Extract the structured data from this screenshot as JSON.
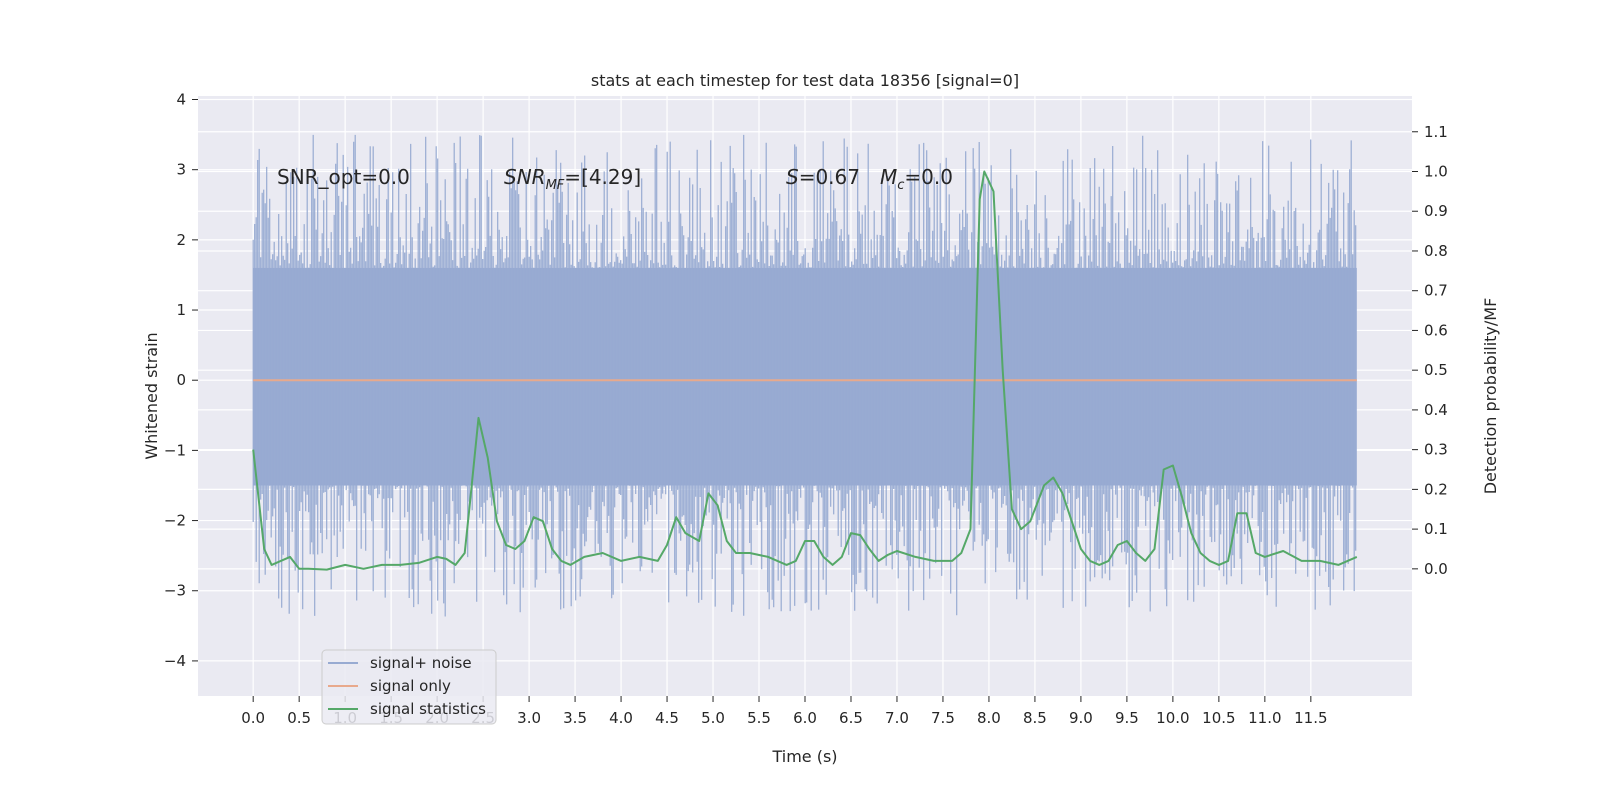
{
  "chart_data": {
    "type": "line",
    "title": "stats at each timestep for test data 18356 [signal=0]",
    "xlabel": "Time (s)",
    "ylabel": "Whitened strain",
    "y2label": "Detection probability/MF",
    "xlim": [
      -0.6,
      12.6
    ],
    "ylim": [
      -4.5,
      4.05
    ],
    "y2lim": [
      -0.32,
      1.19
    ],
    "xticks": [
      0.0,
      0.5,
      1.0,
      1.5,
      2.0,
      2.5,
      3.0,
      3.5,
      4.0,
      4.5,
      5.0,
      5.5,
      6.0,
      6.5,
      7.0,
      7.5,
      8.0,
      8.5,
      9.0,
      9.5,
      10.0,
      10.5,
      11.0,
      11.5
    ],
    "xtick_labels": [
      "0.0",
      "0.5",
      "1.0",
      "1.5",
      "2.0",
      "2.5",
      "3.0",
      "3.5",
      "4.0",
      "4.5",
      "5.0",
      "5.5",
      "6.0",
      "6.5",
      "7.0",
      "7.5",
      "8.0",
      "8.5",
      "9.0",
      "9.5",
      "10.0",
      "10.5",
      "11.0",
      "11.5"
    ],
    "yticks": [
      -4,
      -3,
      -2,
      -1,
      0,
      1,
      2,
      3,
      4
    ],
    "ytick_labels": [
      "−4",
      "−3",
      "−2",
      "−1",
      "0",
      "1",
      "2",
      "3",
      "4"
    ],
    "y2ticks": [
      0.0,
      0.1,
      0.2,
      0.3,
      0.4,
      0.5,
      0.6,
      0.7,
      0.8,
      0.9,
      1.0,
      1.1
    ],
    "y2tick_labels": [
      "0.0",
      "0.1",
      "0.2",
      "0.3",
      "0.4",
      "0.5",
      "0.6",
      "0.7",
      "0.8",
      "0.9",
      "1.0",
      "1.1"
    ],
    "grid": true,
    "legend_position": "lower-left",
    "series": [
      {
        "name": "signal+ noise",
        "color": "#98abd2",
        "kind": "noise-band",
        "t_start": 0.0,
        "t_end": 12.0,
        "band": [
          -1.5,
          1.6
        ]
      },
      {
        "name": "signal only",
        "color": "#e8a98c",
        "kind": "flat",
        "x": [
          0.0,
          12.0
        ],
        "y": [
          0.0,
          0.0
        ]
      },
      {
        "name": "signal statistics",
        "color": "#55a868",
        "kind": "line",
        "axis": "right",
        "x": [
          0.0,
          0.12,
          0.2,
          0.3,
          0.4,
          0.5,
          0.6,
          0.8,
          1.0,
          1.2,
          1.4,
          1.6,
          1.8,
          2.0,
          2.1,
          2.2,
          2.3,
          2.35,
          2.45,
          2.55,
          2.65,
          2.75,
          2.85,
          2.95,
          3.05,
          3.15,
          3.25,
          3.35,
          3.45,
          3.6,
          3.8,
          4.0,
          4.2,
          4.4,
          4.5,
          4.6,
          4.7,
          4.85,
          4.95,
          5.05,
          5.15,
          5.25,
          5.4,
          5.6,
          5.8,
          5.9,
          6.0,
          6.1,
          6.2,
          6.3,
          6.4,
          6.5,
          6.6,
          6.7,
          6.8,
          6.9,
          7.0,
          7.2,
          7.4,
          7.5,
          7.6,
          7.7,
          7.8,
          7.9,
          7.95,
          8.05,
          8.15,
          8.25,
          8.35,
          8.45,
          8.6,
          8.7,
          8.8,
          8.9,
          9.0,
          9.1,
          9.2,
          9.3,
          9.4,
          9.5,
          9.6,
          9.7,
          9.8,
          9.9,
          10.0,
          10.1,
          10.2,
          10.3,
          10.4,
          10.5,
          10.6,
          10.7,
          10.8,
          10.9,
          11.0,
          11.2,
          11.4,
          11.6,
          11.8,
          12.0
        ],
        "y": [
          0.3,
          0.05,
          0.01,
          0.02,
          0.03,
          0.0,
          0.0,
          -0.002,
          0.01,
          0.0,
          0.01,
          0.01,
          0.015,
          0.03,
          0.025,
          0.01,
          0.04,
          0.15,
          0.38,
          0.28,
          0.12,
          0.06,
          0.05,
          0.07,
          0.13,
          0.12,
          0.05,
          0.02,
          0.01,
          0.03,
          0.04,
          0.02,
          0.03,
          0.02,
          0.06,
          0.13,
          0.09,
          0.07,
          0.19,
          0.16,
          0.07,
          0.04,
          0.04,
          0.03,
          0.01,
          0.02,
          0.07,
          0.07,
          0.03,
          0.01,
          0.03,
          0.09,
          0.085,
          0.05,
          0.02,
          0.035,
          0.045,
          0.03,
          0.02,
          0.02,
          0.02,
          0.04,
          0.1,
          0.93,
          1.0,
          0.95,
          0.5,
          0.15,
          0.1,
          0.12,
          0.21,
          0.23,
          0.19,
          0.12,
          0.05,
          0.02,
          0.01,
          0.02,
          0.06,
          0.07,
          0.04,
          0.02,
          0.05,
          0.25,
          0.26,
          0.18,
          0.09,
          0.04,
          0.02,
          0.01,
          0.02,
          0.14,
          0.14,
          0.04,
          0.03,
          0.045,
          0.02,
          0.02,
          0.01,
          0.03
        ]
      }
    ],
    "annotations": {
      "snr_opt": "SNR_opt=0.0",
      "snr_mf": "SNR",
      "snr_mf_sub": "MF",
      "snr_mf_val": "=[4.29]",
      "s_text": "S",
      "s_val": "=0.67",
      "mc_text": "M",
      "mc_sub": "c",
      "mc_val": "=0.0"
    },
    "legend": [
      "signal+ noise",
      "signal only",
      "signal statistics"
    ]
  }
}
